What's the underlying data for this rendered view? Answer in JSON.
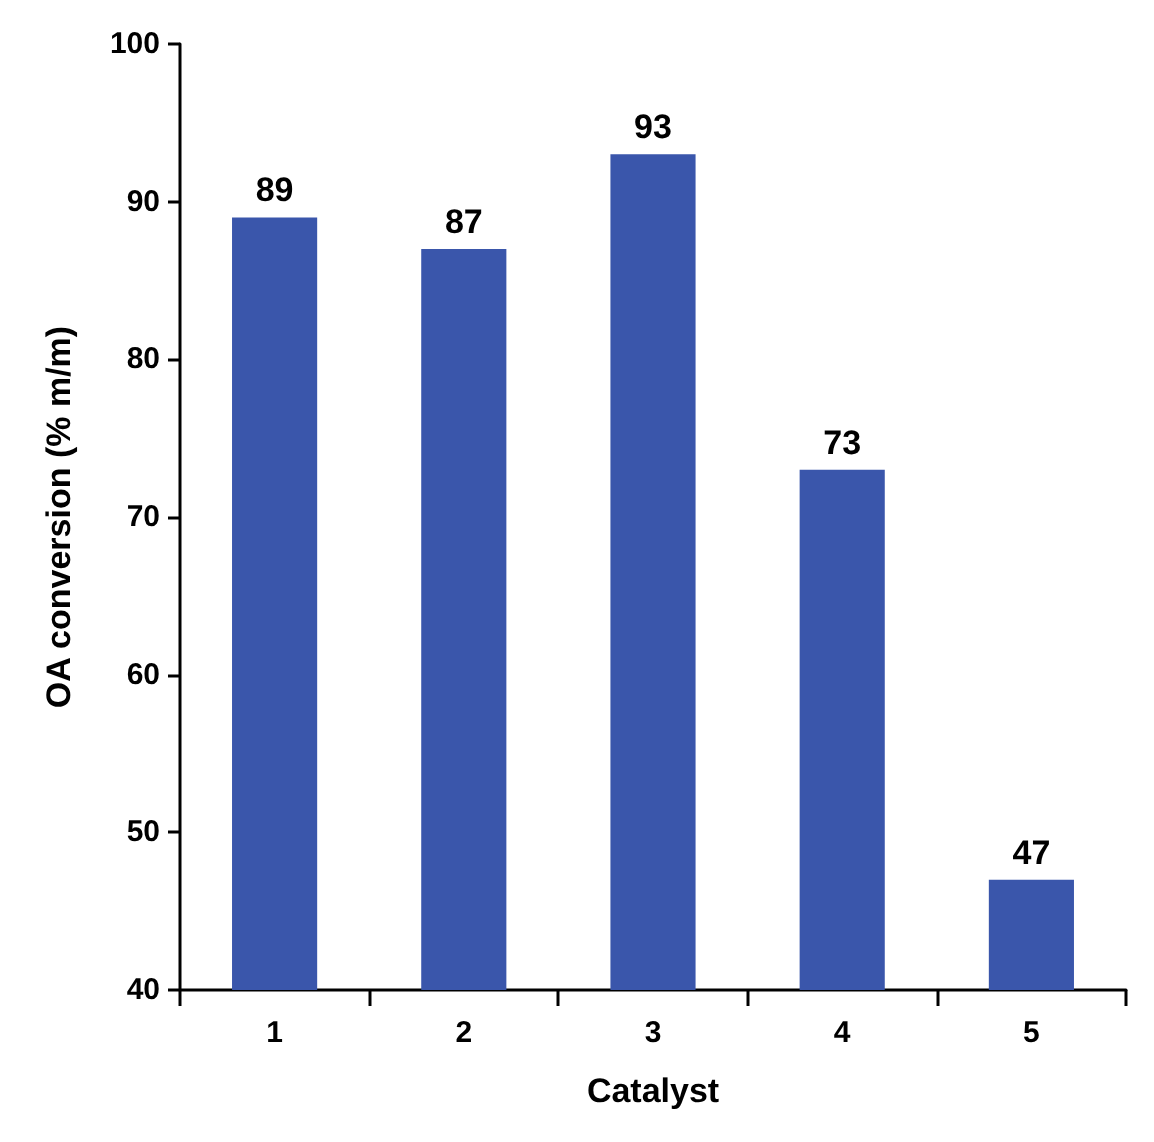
{
  "chart_data": {
    "type": "bar",
    "xlabel": "Catalyst",
    "ylabel": "OA conversion (% m/m)",
    "categories": [
      "1",
      "2",
      "3",
      "4",
      "5"
    ],
    "values": [
      89,
      87,
      93,
      73,
      47
    ],
    "color": "#3a56ab",
    "ylim": [
      40,
      100
    ],
    "yticks": [
      40,
      50,
      60,
      70,
      80,
      90,
      100
    ],
    "data_labels": true,
    "grid": false
  }
}
